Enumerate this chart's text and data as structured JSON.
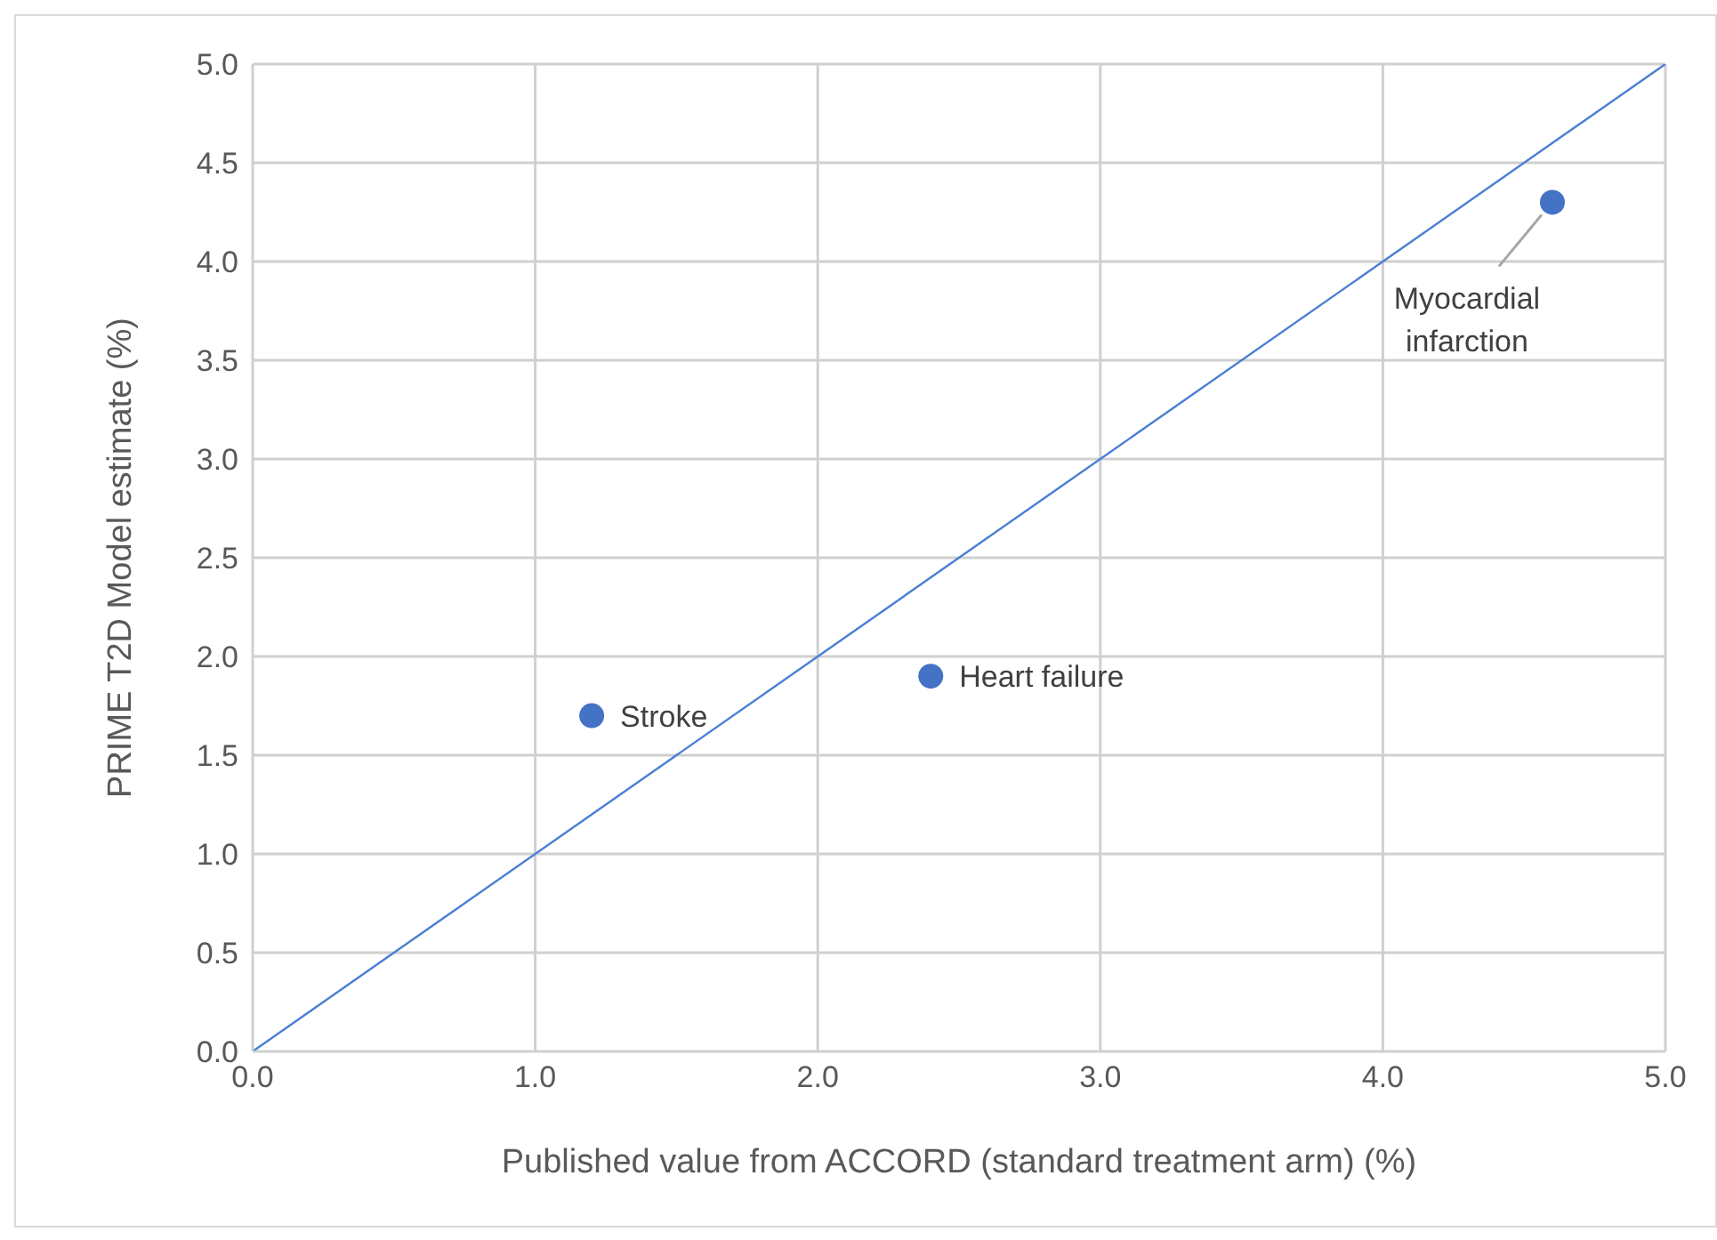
{
  "chart_data": {
    "type": "scatter",
    "xlabel": "Published value from ACCORD (standard treatment arm) (%)",
    "ylabel": "PRIME T2D Model estimate (%)",
    "series": [
      {
        "color": "#4472c4",
        "marker": "circle",
        "x": [
          1.2,
          2.4,
          4.6
        ],
        "values": [
          1.7,
          1.9,
          4.3
        ]
      },
      {
        "type": "line",
        "color": "#4a7fd4",
        "x": [
          0,
          5
        ],
        "values": [
          0,
          5
        ]
      }
    ],
    "grid": true,
    "xlim": [
      0,
      5
    ],
    "xticks": [
      {
        "value": 0,
        "label": "0.0"
      },
      {
        "value": 1,
        "label": "1.0"
      },
      {
        "value": 2,
        "label": "2.0"
      },
      {
        "value": 3,
        "label": "3.0"
      },
      {
        "value": 4,
        "label": "4.0"
      },
      {
        "value": 5,
        "label": "5.0"
      }
    ],
    "ylim": [
      0,
      5
    ],
    "yticks": [
      {
        "value": 0,
        "label": "0.0"
      },
      {
        "value": 0.5,
        "label": "0.5"
      },
      {
        "value": 1,
        "label": "1.0"
      },
      {
        "value": 1.5,
        "label": "1.5"
      },
      {
        "value": 2,
        "label": "2.0"
      },
      {
        "value": 2.5,
        "label": "2.5"
      },
      {
        "value": 3,
        "label": "3.0"
      },
      {
        "value": 3.5,
        "label": "3.5"
      },
      {
        "value": 4,
        "label": "4.0"
      },
      {
        "value": 4.5,
        "label": "4.5"
      },
      {
        "value": 5,
        "label": "5.0"
      }
    ],
    "annotations": [
      {
        "text": "Stroke",
        "x": 1.2,
        "y": 1.7
      },
      {
        "text": "Heart failure",
        "x": 2.4,
        "y": 1.9
      },
      {
        "text": "Myocardial infarction",
        "x": 4.6,
        "y": 4.3
      }
    ]
  }
}
